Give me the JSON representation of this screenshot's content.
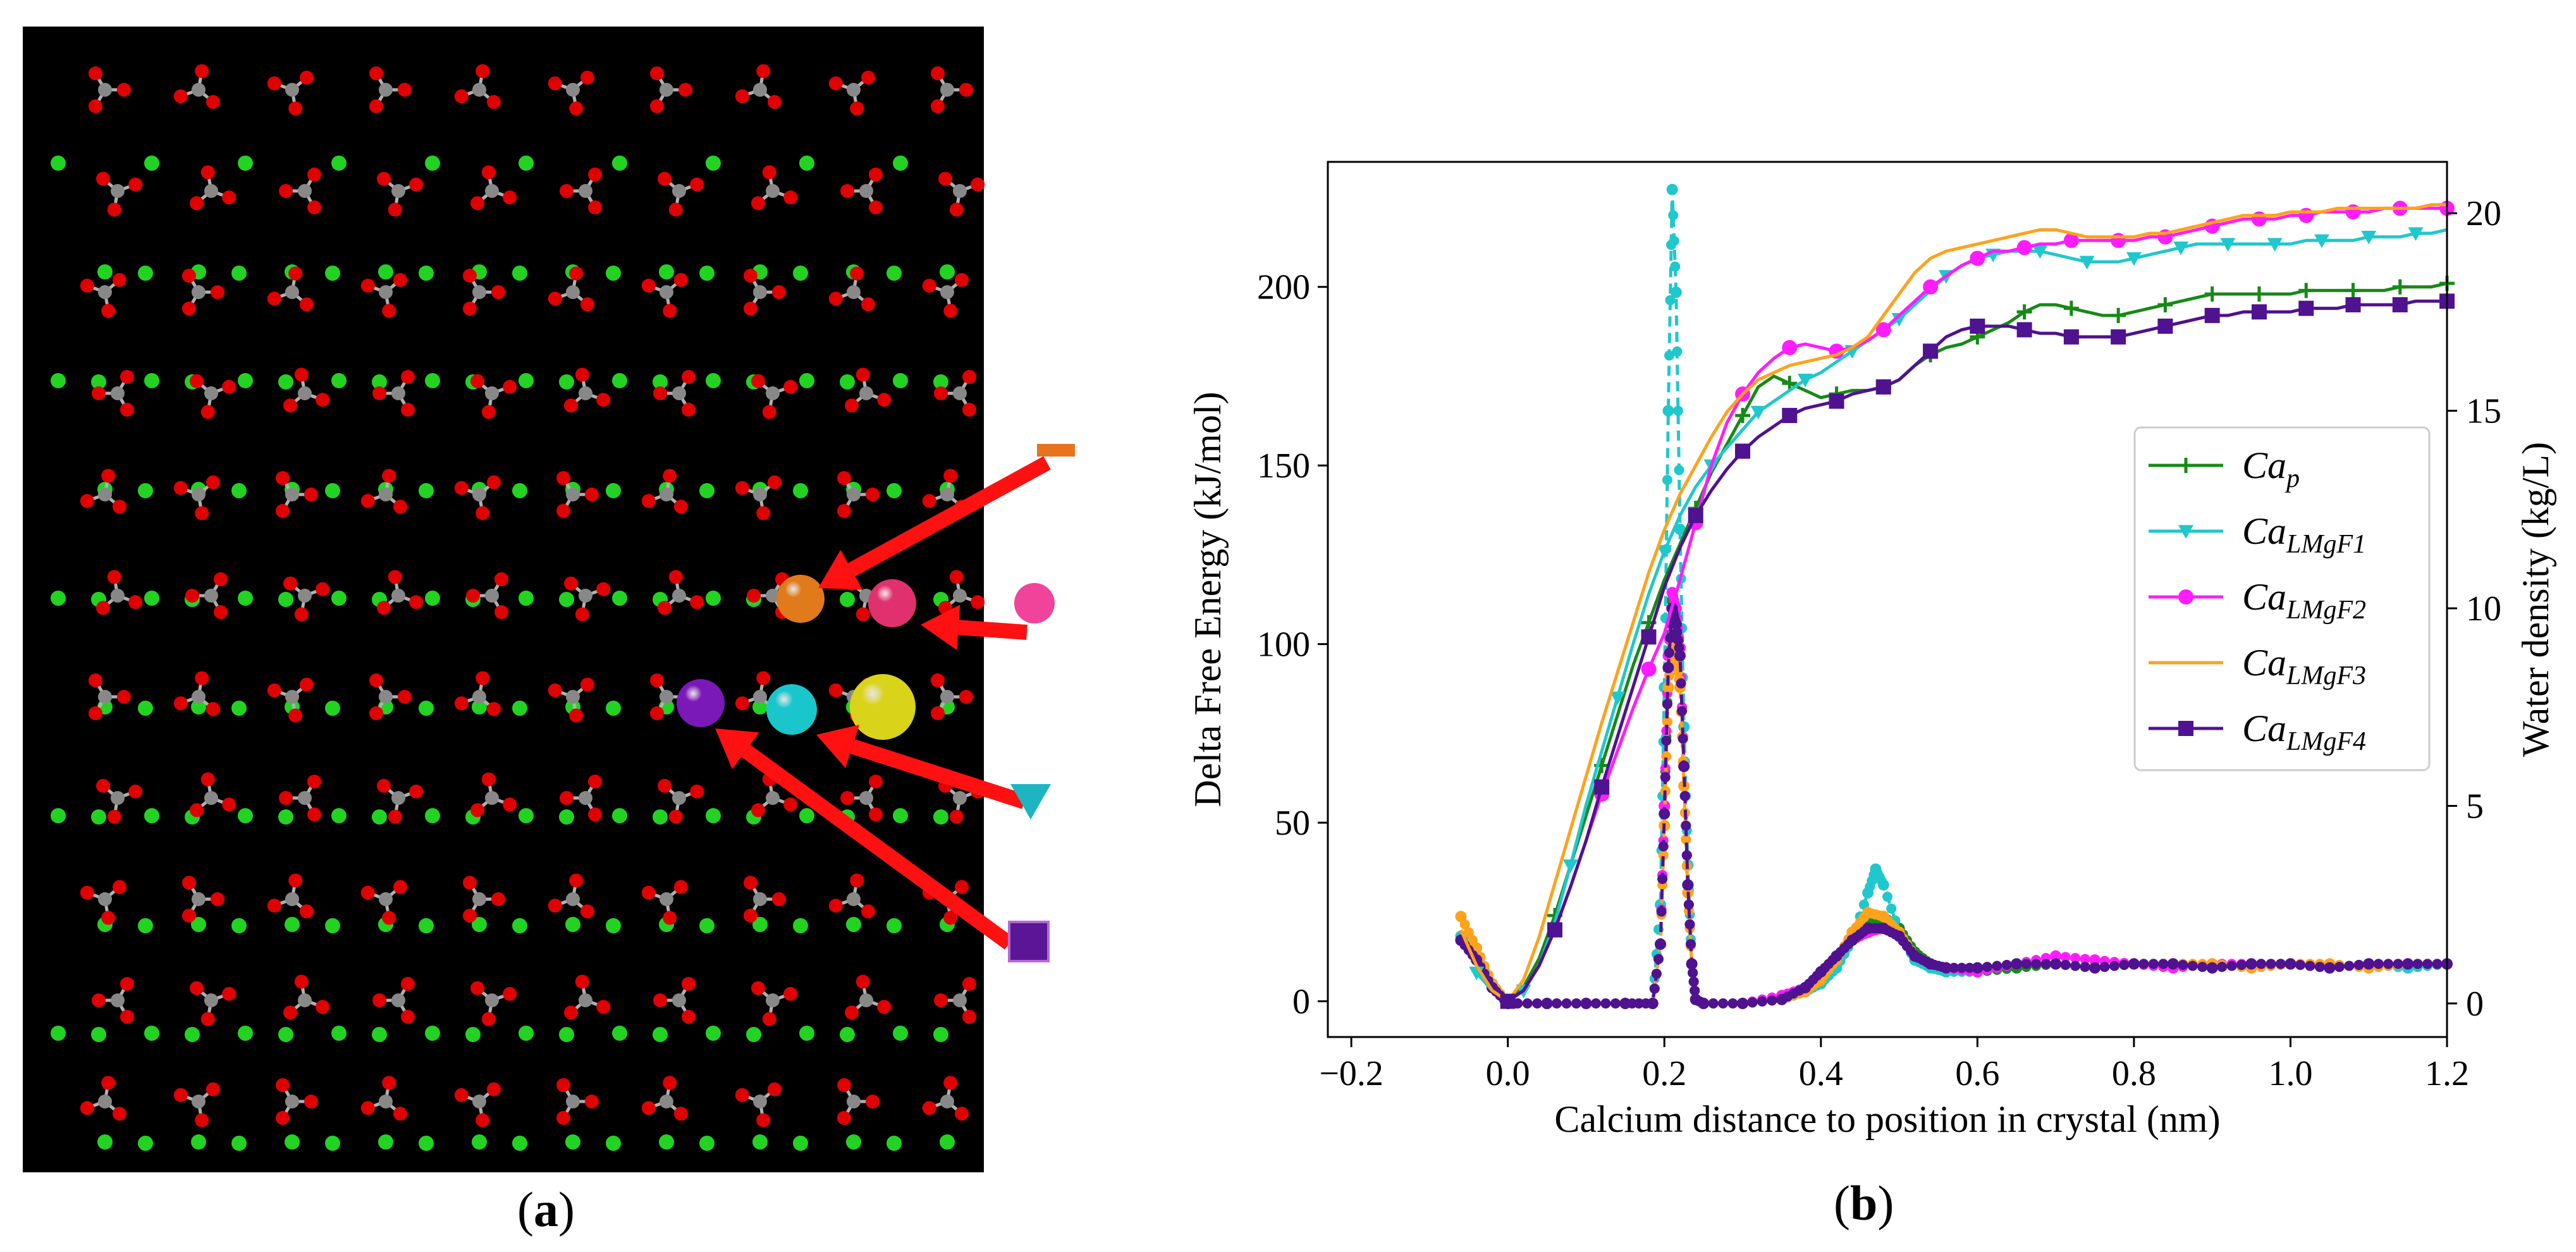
{
  "panel_a": {
    "label_open": "(",
    "label_letter": "a",
    "label_close": ")",
    "marker_symbols": [
      {
        "symbol": "dash",
        "color": "#e8731c"
      },
      {
        "symbol": "circle",
        "color": "#f0449b"
      },
      {
        "symbol": "triangle-down",
        "color": "#1fb4c2"
      },
      {
        "symbol": "square",
        "color": "#5a1694"
      }
    ],
    "highlighted_atoms": [
      {
        "name": "orange-atom",
        "color": "#e07a1a"
      },
      {
        "name": "pink-atom",
        "color": "#e0306e"
      },
      {
        "name": "purple-atom",
        "color": "#7a18b8"
      },
      {
        "name": "cyan-atom",
        "color": "#19c6cc"
      },
      {
        "name": "yellow-atom",
        "color": "#d9d31a"
      }
    ],
    "colors": {
      "background": "#000000",
      "calcium": "#22d322",
      "carbon": "#888888",
      "oxygen": "#e00000",
      "arrow": "#ff1111"
    }
  },
  "panel_b": {
    "label_open": "(",
    "label_letter": "b",
    "label_close": ")"
  },
  "chart_data": {
    "type": "line",
    "xlabel": "Calcium distance to position in crystal (nm)",
    "ylabel": "Delta Free Energy (kJ/mol)",
    "y2label": "Water density (kg/L)",
    "xlim": [
      -0.23,
      1.2
    ],
    "ylim": [
      -10,
      235
    ],
    "y2lim": [
      -0.85,
      21.3
    ],
    "xticks": [
      -0.2,
      0.0,
      0.2,
      0.4,
      0.6,
      0.8,
      1.0,
      1.2
    ],
    "xtick_labels": [
      "−0.2",
      "0.0",
      "0.2",
      "0.4",
      "0.6",
      "0.8",
      "1.0",
      "1.2"
    ],
    "yticks": [
      0,
      50,
      100,
      150,
      200
    ],
    "ytick_labels": [
      "0",
      "50",
      "100",
      "150",
      "200"
    ],
    "y2ticks": [
      0,
      5,
      10,
      15,
      20
    ],
    "y2tick_labels": [
      "0",
      "5",
      "10",
      "15",
      "20"
    ],
    "legend_position": "right",
    "grid": false,
    "series": [
      {
        "name": "Ca",
        "sub": "p",
        "color": "#168a16",
        "marker": "plus",
        "x": [
          0.0,
          0.02,
          0.04,
          0.06,
          0.08,
          0.1,
          0.12,
          0.14,
          0.16,
          0.18,
          0.2,
          0.22,
          0.24,
          0.26,
          0.28,
          0.3,
          0.32,
          0.34,
          0.36,
          0.38,
          0.4,
          0.42,
          0.44,
          0.46,
          0.48,
          0.5,
          0.52,
          0.54,
          0.56,
          0.58,
          0.6,
          0.62,
          0.64,
          0.66,
          0.68,
          0.7,
          0.72,
          0.74,
          0.76,
          0.78,
          0.8,
          0.82,
          0.84,
          0.86,
          0.88,
          0.9,
          0.92,
          0.94,
          0.96,
          0.98,
          1.0,
          1.02,
          1.04,
          1.06,
          1.08,
          1.1,
          1.12,
          1.14,
          1.16,
          1.18,
          1.2
        ],
        "y": [
          0,
          4,
          12,
          24,
          38,
          52,
          66,
          80,
          94,
          106,
          118,
          128,
          138,
          148,
          156,
          164,
          172,
          175,
          173,
          171,
          169,
          170,
          171,
          171,
          172,
          174,
          178,
          181,
          183,
          184,
          186,
          188,
          190,
          193,
          195,
          195,
          194,
          193,
          192,
          192,
          193,
          194,
          195,
          196,
          197,
          198,
          198,
          198,
          198,
          198,
          198,
          199,
          199,
          199,
          199,
          199,
          199,
          200,
          200,
          200,
          201
        ]
      },
      {
        "name": "Ca",
        "sub": "LMgF1",
        "color": "#1fc8cc",
        "marker": "triangle-down",
        "x": [
          -0.04,
          -0.02,
          0.0,
          0.02,
          0.04,
          0.06,
          0.08,
          0.1,
          0.12,
          0.14,
          0.16,
          0.18,
          0.2,
          0.22,
          0.24,
          0.26,
          0.28,
          0.3,
          0.32,
          0.34,
          0.36,
          0.38,
          0.4,
          0.42,
          0.44,
          0.46,
          0.48,
          0.5,
          0.52,
          0.54,
          0.56,
          0.58,
          0.6,
          0.62,
          0.64,
          0.66,
          0.68,
          0.7,
          0.72,
          0.74,
          0.76,
          0.78,
          0.8,
          0.82,
          0.84,
          0.86,
          0.88,
          0.9,
          0.92,
          0.94,
          0.96,
          0.98,
          1.0,
          1.02,
          1.04,
          1.06,
          1.08,
          1.1,
          1.12,
          1.14,
          1.16,
          1.18,
          1.2
        ],
        "y": [
          8,
          3,
          0,
          3,
          10,
          22,
          38,
          55,
          70,
          85,
          100,
          114,
          126,
          136,
          144,
          150,
          155,
          160,
          165,
          168,
          171,
          174,
          176,
          179,
          182,
          185,
          188,
          191,
          195,
          199,
          203,
          206,
          208,
          209,
          210,
          210,
          210,
          209,
          208,
          207,
          207,
          207,
          208,
          209,
          210,
          211,
          212,
          212,
          212,
          212,
          212,
          212,
          212,
          213,
          213,
          213,
          213,
          214,
          214,
          214,
          215,
          215,
          216
        ]
      },
      {
        "name": "Ca",
        "sub": "LMgF2",
        "color": "#ff1cff",
        "marker": "circle",
        "x": [
          0.0,
          0.02,
          0.04,
          0.06,
          0.08,
          0.1,
          0.12,
          0.14,
          0.16,
          0.18,
          0.2,
          0.22,
          0.24,
          0.26,
          0.28,
          0.3,
          0.32,
          0.34,
          0.36,
          0.38,
          0.4,
          0.42,
          0.44,
          0.46,
          0.48,
          0.5,
          0.52,
          0.54,
          0.56,
          0.58,
          0.6,
          0.62,
          0.64,
          0.66,
          0.68,
          0.7,
          0.72,
          0.74,
          0.76,
          0.78,
          0.8,
          0.82,
          0.84,
          0.86,
          0.88,
          0.9,
          0.92,
          0.94,
          0.96,
          0.98,
          1.0,
          1.02,
          1.04,
          1.06,
          1.08,
          1.1,
          1.12,
          1.14,
          1.16,
          1.18,
          1.2
        ],
        "y": [
          0,
          3,
          10,
          20,
          32,
          45,
          58,
          70,
          82,
          93,
          103,
          118,
          134,
          150,
          162,
          170,
          176,
          180,
          183,
          184,
          183,
          182,
          183,
          185,
          188,
          192,
          196,
          200,
          203,
          206,
          208,
          210,
          210,
          211,
          212,
          212,
          213,
          213,
          213,
          213,
          213,
          214,
          214,
          215,
          216,
          217,
          218,
          219,
          219,
          219,
          220,
          220,
          221,
          221,
          221,
          221,
          222,
          222,
          222,
          222,
          222
        ]
      },
      {
        "name": "Ca",
        "sub": "LMgF3",
        "color": "#ffa21c",
        "marker": "none",
        "x": [
          -0.06,
          -0.04,
          -0.02,
          0.0,
          0.02,
          0.04,
          0.06,
          0.08,
          0.1,
          0.12,
          0.14,
          0.16,
          0.18,
          0.2,
          0.22,
          0.24,
          0.26,
          0.28,
          0.3,
          0.32,
          0.34,
          0.36,
          0.38,
          0.4,
          0.42,
          0.44,
          0.46,
          0.48,
          0.5,
          0.52,
          0.54,
          0.56,
          0.58,
          0.6,
          0.62,
          0.64,
          0.66,
          0.68,
          0.7,
          0.72,
          0.74,
          0.76,
          0.78,
          0.8,
          0.82,
          0.84,
          0.86,
          0.88,
          0.9,
          0.92,
          0.94,
          0.96,
          0.98,
          1.0,
          1.02,
          1.04,
          1.06,
          1.08,
          1.1,
          1.12,
          1.14,
          1.16,
          1.18,
          1.2
        ],
        "y": [
          20,
          10,
          3,
          0,
          6,
          18,
          33,
          48,
          63,
          78,
          92,
          106,
          120,
          132,
          142,
          150,
          158,
          165,
          170,
          174,
          176,
          178,
          179,
          180,
          181,
          183,
          186,
          192,
          198,
          204,
          208,
          210,
          211,
          212,
          213,
          214,
          215,
          216,
          216,
          215,
          214,
          214,
          214,
          214,
          215,
          215,
          216,
          217,
          218,
          219,
          220,
          220,
          220,
          221,
          221,
          221,
          222,
          222,
          222,
          222,
          222,
          222,
          223,
          223
        ]
      },
      {
        "name": "Ca",
        "sub": "LMgF4",
        "color": "#4f1290",
        "marker": "square",
        "x": [
          0.0,
          0.02,
          0.04,
          0.06,
          0.08,
          0.1,
          0.12,
          0.14,
          0.16,
          0.18,
          0.2,
          0.22,
          0.24,
          0.26,
          0.28,
          0.3,
          0.32,
          0.34,
          0.36,
          0.38,
          0.4,
          0.42,
          0.44,
          0.46,
          0.48,
          0.5,
          0.52,
          0.54,
          0.56,
          0.58,
          0.6,
          0.62,
          0.64,
          0.66,
          0.68,
          0.7,
          0.72,
          0.74,
          0.76,
          0.78,
          0.8,
          0.82,
          0.84,
          0.86,
          0.88,
          0.9,
          0.92,
          0.94,
          0.96,
          0.98,
          1.0,
          1.02,
          1.04,
          1.06,
          1.08,
          1.1,
          1.12,
          1.14,
          1.16,
          1.18,
          1.2
        ],
        "y": [
          0,
          3,
          10,
          20,
          32,
          45,
          60,
          74,
          88,
          102,
          116,
          127,
          136,
          143,
          149,
          154,
          158,
          161,
          164,
          166,
          167,
          168,
          170,
          171,
          172,
          174,
          178,
          182,
          186,
          188,
          189,
          189,
          189,
          188,
          187,
          187,
          186,
          186,
          186,
          186,
          187,
          188,
          189,
          190,
          191,
          192,
          192,
          193,
          193,
          193,
          193,
          194,
          194,
          194,
          195,
          195,
          195,
          195,
          196,
          196,
          196
        ]
      }
    ],
    "density_series": [
      {
        "color": "#168a16",
        "x": [
          -0.06,
          -0.04,
          -0.02,
          0.0,
          0.05,
          0.1,
          0.15,
          0.185,
          0.195,
          0.2,
          0.205,
          0.21,
          0.215,
          0.22,
          0.225,
          0.23,
          0.235,
          0.24,
          0.25,
          0.3,
          0.35,
          0.38,
          0.4,
          0.42,
          0.44,
          0.46,
          0.48,
          0.5,
          0.52,
          0.54,
          0.56,
          0.6,
          0.65,
          0.7,
          0.75,
          0.8,
          0.85,
          0.9,
          0.95,
          1.0,
          1.05,
          1.1,
          1.15,
          1.2
        ],
        "y": [
          1.6,
          1.2,
          0.5,
          0.0,
          0.0,
          0.0,
          0.0,
          0.0,
          1.5,
          5.0,
          8.5,
          10.2,
          9.8,
          9.0,
          6.0,
          3.0,
          1.0,
          0.1,
          0.0,
          0.0,
          0.1,
          0.3,
          0.6,
          1.0,
          1.6,
          2.0,
          2.2,
          1.9,
          1.3,
          1.0,
          0.9,
          0.8,
          0.9,
          1.0,
          0.9,
          1.0,
          1.0,
          0.9,
          1.0,
          1.0,
          0.9,
          1.0,
          0.9,
          1.0
        ]
      },
      {
        "color": "#1fc8cc",
        "x": [
          -0.06,
          -0.04,
          -0.02,
          0.0,
          0.05,
          0.1,
          0.15,
          0.185,
          0.195,
          0.2,
          0.205,
          0.21,
          0.215,
          0.22,
          0.225,
          0.23,
          0.235,
          0.24,
          0.25,
          0.3,
          0.35,
          0.38,
          0.4,
          0.42,
          0.44,
          0.46,
          0.47,
          0.48,
          0.5,
          0.52,
          0.54,
          0.56,
          0.6,
          0.65,
          0.7,
          0.75,
          0.8,
          0.85,
          0.9,
          0.95,
          1.0,
          1.05,
          1.1,
          1.15,
          1.2
        ],
        "y": [
          1.7,
          1.2,
          0.5,
          0.0,
          0.0,
          0.0,
          0.0,
          0.0,
          2.5,
          8.0,
          15.0,
          20.6,
          18.0,
          12.0,
          7.0,
          3.5,
          1.0,
          0.1,
          0.0,
          0.0,
          0.1,
          0.3,
          0.5,
          0.9,
          1.6,
          2.8,
          3.4,
          3.0,
          1.8,
          1.1,
          0.9,
          0.8,
          0.8,
          1.0,
          1.0,
          0.9,
          1.0,
          1.0,
          0.9,
          1.0,
          1.0,
          0.9,
          1.0,
          0.9,
          1.0
        ]
      },
      {
        "color": "#ff1cff",
        "x": [
          -0.06,
          -0.04,
          -0.02,
          0.0,
          0.05,
          0.1,
          0.15,
          0.185,
          0.195,
          0.2,
          0.205,
          0.21,
          0.215,
          0.22,
          0.225,
          0.23,
          0.235,
          0.24,
          0.25,
          0.3,
          0.35,
          0.38,
          0.4,
          0.42,
          0.44,
          0.46,
          0.48,
          0.5,
          0.52,
          0.54,
          0.56,
          0.6,
          0.65,
          0.7,
          0.75,
          0.8,
          0.85,
          0.9,
          0.95,
          1.0,
          1.05,
          1.1,
          1.15,
          1.2
        ],
        "y": [
          1.6,
          1.1,
          0.4,
          0.0,
          0.0,
          0.0,
          0.0,
          0.0,
          1.5,
          5.0,
          8.8,
          10.4,
          10.0,
          9.0,
          6.0,
          3.0,
          1.0,
          0.1,
          0.0,
          0.0,
          0.2,
          0.4,
          0.8,
          1.2,
          1.6,
          1.8,
          1.9,
          1.7,
          1.2,
          1.0,
          0.9,
          0.8,
          1.0,
          1.2,
          1.1,
          1.0,
          0.9,
          1.0,
          1.0,
          1.0,
          0.9,
          1.0,
          1.0,
          1.0
        ]
      },
      {
        "color": "#ffa21c",
        "x": [
          -0.06,
          -0.04,
          -0.02,
          0.0,
          0.05,
          0.1,
          0.15,
          0.185,
          0.195,
          0.2,
          0.205,
          0.21,
          0.215,
          0.22,
          0.225,
          0.23,
          0.235,
          0.24,
          0.25,
          0.3,
          0.35,
          0.38,
          0.4,
          0.42,
          0.44,
          0.46,
          0.48,
          0.5,
          0.52,
          0.54,
          0.56,
          0.6,
          0.65,
          0.7,
          0.75,
          0.8,
          0.85,
          0.9,
          0.95,
          1.0,
          1.05,
          1.1,
          1.15,
          1.2
        ],
        "y": [
          2.2,
          1.4,
          0.5,
          0.0,
          0.0,
          0.0,
          0.0,
          0.0,
          1.5,
          4.5,
          8.0,
          9.2,
          8.8,
          8.0,
          5.5,
          2.8,
          1.0,
          0.1,
          0.0,
          0.0,
          0.1,
          0.3,
          0.6,
          1.1,
          1.8,
          2.3,
          2.2,
          1.8,
          1.2,
          1.0,
          0.9,
          0.9,
          1.0,
          1.0,
          0.9,
          1.0,
          1.0,
          1.0,
          0.9,
          1.0,
          1.0,
          0.9,
          1.0,
          1.0
        ]
      },
      {
        "color": "#4f1290",
        "x": [
          -0.06,
          -0.04,
          -0.02,
          0.0,
          0.05,
          0.1,
          0.15,
          0.185,
          0.195,
          0.2,
          0.205,
          0.21,
          0.215,
          0.22,
          0.225,
          0.23,
          0.235,
          0.24,
          0.25,
          0.3,
          0.35,
          0.38,
          0.4,
          0.42,
          0.44,
          0.46,
          0.48,
          0.5,
          0.52,
          0.54,
          0.56,
          0.6,
          0.65,
          0.7,
          0.75,
          0.8,
          0.85,
          0.9,
          0.95,
          1.0,
          1.05,
          1.1,
          1.15,
          1.2
        ],
        "y": [
          1.6,
          1.1,
          0.4,
          0.0,
          0.0,
          0.0,
          0.0,
          0.0,
          1.5,
          4.8,
          8.5,
          10.0,
          9.6,
          8.8,
          6.0,
          3.0,
          1.0,
          0.1,
          0.0,
          0.0,
          0.1,
          0.4,
          0.8,
          1.2,
          1.6,
          1.9,
          1.9,
          1.7,
          1.2,
          1.0,
          0.9,
          0.9,
          1.0,
          1.0,
          0.9,
          1.0,
          1.0,
          0.9,
          1.0,
          1.0,
          0.9,
          1.0,
          1.0,
          1.0
        ]
      }
    ]
  }
}
